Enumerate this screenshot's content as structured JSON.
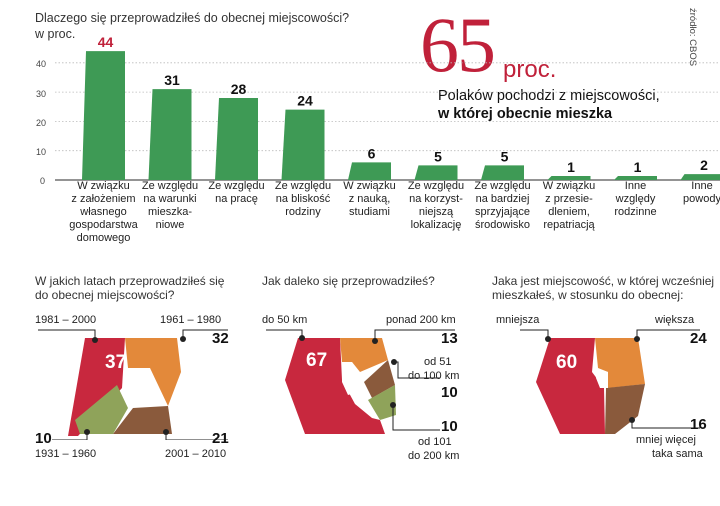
{
  "chart_data": [
    {
      "type": "bar",
      "title": "Dlaczego się przeprowadziłeś do obecnej miejscowości?",
      "ylabel": "w proc.",
      "ylim": [
        0,
        44
      ],
      "yticks": [
        "0",
        "10",
        "20",
        "30",
        "40"
      ],
      "categories": [
        "W związku z założeniem własnego gospodarstwa domowego",
        "Ze względu na warunki mieszka-niowe",
        "Ze względu na pracę",
        "Ze względu na bliskość rodziny",
        "W związku z nauką, studiami",
        "Ze względu na korzyst-niejszą lokalizację",
        "Ze względu na bardziej sprzyjające środowisko",
        "W związku z przesie-dleniem, repatriacją",
        "Inne względy rodzinne",
        "Inne powody"
      ],
      "category_lines": [
        [
          "W związku",
          "z założeniem",
          "własnego",
          "gospodarstwa",
          "domowego"
        ],
        [
          "Ze względu",
          "na warunki",
          "mieszka-",
          "niowe"
        ],
        [
          "Ze względu",
          "na pracę"
        ],
        [
          "Ze względu",
          "na bliskość",
          "rodziny"
        ],
        [
          "W związku",
          "z nauką,",
          "studiami"
        ],
        [
          "Ze względu",
          "na korzyst-",
          "niejszą",
          "lokalizację"
        ],
        [
          "Ze względu",
          "na bardziej",
          "sprzyjające",
          "środowisko"
        ],
        [
          "W związku",
          "z przesie-",
          "dleniem,",
          "repatriacją"
        ],
        [
          "Inne",
          "względy",
          "rodzinne"
        ],
        [
          "Inne",
          "powody"
        ]
      ],
      "values": [
        44,
        31,
        28,
        24,
        6,
        5,
        5,
        1,
        1,
        2
      ],
      "value_labels": [
        "44",
        "31",
        "28",
        "24",
        "6",
        "5",
        "5",
        "1",
        "1",
        "2"
      ]
    },
    {
      "type": "pie",
      "title": "W jakich latach przeprowadziłeś się do obecnej miejscowości?",
      "slices": [
        {
          "label": "1981 – 2000",
          "value": 37,
          "color": "#c8283e"
        },
        {
          "label": "1961 – 1980",
          "value": 32,
          "color": "#e3893a"
        },
        {
          "label": "2001 – 2010",
          "value": 21,
          "color": "#8a5a3c"
        },
        {
          "label": "1931 – 1960",
          "value": 10,
          "color": "#8fa35a"
        }
      ]
    },
    {
      "type": "pie",
      "title": "Jak daleko się przeprowadziłeś?",
      "slices": [
        {
          "label": "do 50 km",
          "value": 67,
          "color": "#c8283e"
        },
        {
          "label": "ponad 200 km",
          "value": 13,
          "color": "#e3893a"
        },
        {
          "label": "od 51 do 100 km",
          "value": 10,
          "color": "#8a5a3c"
        },
        {
          "label": "od 101 do 200 km",
          "value": 10,
          "color": "#8fa35a"
        }
      ]
    },
    {
      "type": "pie",
      "title": "Jaka jest miejscowość, w której wcześniej mieszkałeś, w stosunku do obecnej:",
      "slices": [
        {
          "label": "mniejsza",
          "value": 60,
          "color": "#c8283e"
        },
        {
          "label": "większa",
          "value": 24,
          "color": "#e3893a"
        },
        {
          "label": "mniej więcej taka sama",
          "value": 16,
          "color": "#8a5a3c"
        }
      ]
    }
  ],
  "header": {
    "title": "Dlaczego się przeprowadziłeś do obecnej miejscowości?",
    "unit": "w proc.",
    "source": "źródło: CBOS"
  },
  "highlight": {
    "big_number": "65",
    "unit": "proc.",
    "line1": "Polaków pochodzi z miejscowości,",
    "line2": "w której obecnie mieszka"
  },
  "panels": {
    "years": {
      "title_line1": "W jakich latach przeprowadziłeś się",
      "title_line2": "do obecnej miejscowości?",
      "v1": "37",
      "l1": "1981 – 2000",
      "v2": "32",
      "l2": "1961 – 1980",
      "v3": "21",
      "l3": "2001 – 2010",
      "v4": "10",
      "l4": "1931 – 1960"
    },
    "distance": {
      "title": "Jak daleko się przeprowadziłeś?",
      "v1": "67",
      "l1": "do 50 km",
      "v2": "13",
      "l2": "ponad 200 km",
      "v3": "10",
      "l3a": "od 51",
      "l3b": "do 100 km",
      "v4": "10",
      "l4a": "od 101",
      "l4b": "do 200 km"
    },
    "size": {
      "title_line1": "Jaka jest miejscowość, w której wcześniej",
      "title_line2": "mieszkałeś, w stosunku do obecnej:",
      "v1": "60",
      "l1": "mniejsza",
      "v2": "24",
      "l2": "większa",
      "v3": "16",
      "l3a": "mniej więcej",
      "l3b": "taka sama"
    }
  },
  "colors": {
    "accent": "#c0213a",
    "bar": "#3e9a55",
    "red": "#c8283e",
    "orange": "#e3893a",
    "brown": "#8a5a3c",
    "olive": "#8fa35a"
  }
}
